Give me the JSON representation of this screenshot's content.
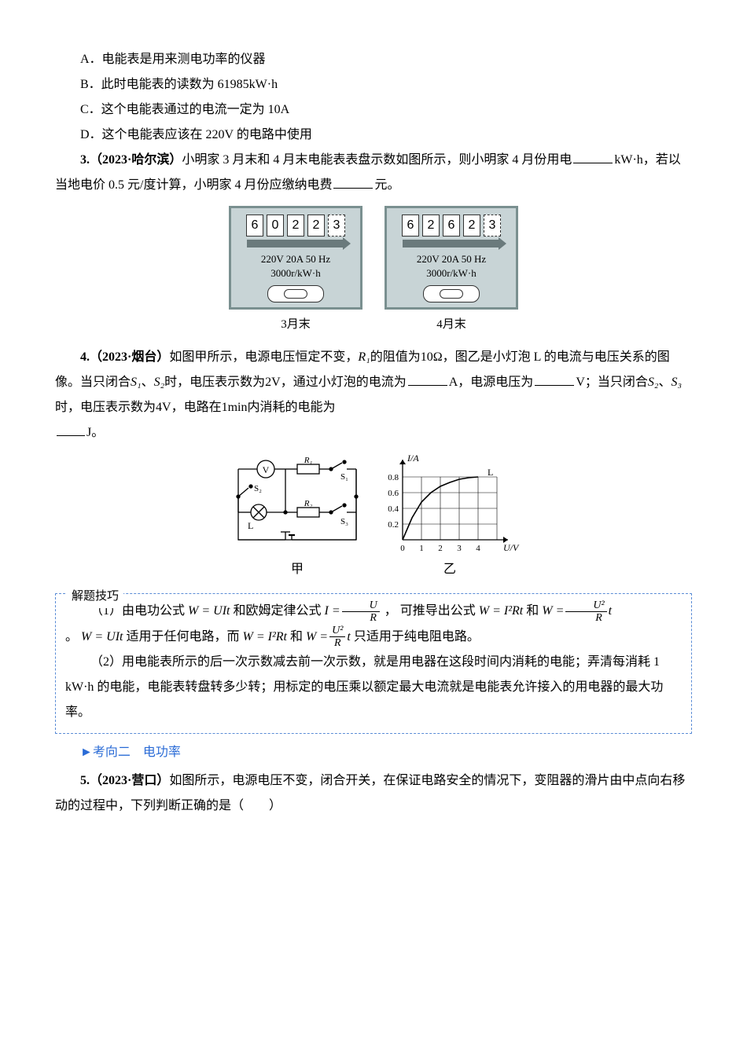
{
  "options": {
    "A": "A．电能表是用来测电功率的仪器",
    "B": "B．此时电能表的读数为 61985kW·h",
    "C": "C．这个电能表通过的电流一定为 10A",
    "D": "D．这个电能表应该在 220V 的电路中使用"
  },
  "q3": {
    "stem_pre": "3.（2023·哈尔滨）",
    "text1": "小明家 3 月末和 4 月末电能表表盘示数如图所示，则小明家 4 月份用电",
    "unit1": "kW·h，若以当地电价 0.5 元/度计算，小明家 4 月份应缴纳电费",
    "unit2": "元。",
    "meters": [
      {
        "digits": [
          "6",
          "0",
          "2",
          "2",
          "3"
        ],
        "spec1": "220V 20A 50 Hz",
        "spec2": "3000r/kW·h",
        "label": "3月末"
      },
      {
        "digits": [
          "6",
          "2",
          "6",
          "2",
          "3"
        ],
        "spec1": "220V 20A 50 Hz",
        "spec2": "3000r/kW·h",
        "label": "4月末"
      }
    ]
  },
  "q4": {
    "stem_pre": "4.（2023·烟台）",
    "text1": "如图甲所示，电源电压恒定不变，",
    "R1": "R₁",
    "t1b": "的阻值为",
    "val10": "10Ω",
    "t1c": "，图乙是小灯泡 L 的电流与电压关系的图像。当只闭合",
    "S1": "S₁",
    "S2": "S₂",
    "t2": "时，电压表示数为",
    "val2v": "2V",
    "t3": "，通过小灯泡的电流为",
    "t4": "A，电源电压为",
    "t5": "V；当只闭合",
    "S2b": "S₂",
    "S3": "S₃",
    "t6": "时，电压表示数为",
    "val4v": "4V",
    "t7": "，电路在",
    "val1min": "1min",
    "t8": "内消耗的电能为",
    "t9": "J。",
    "circuit_label_left": "甲",
    "circuit_label_right": "乙",
    "graph": {
      "ylabel": "I/A",
      "xlabel": "U/V",
      "xticks": [
        "0",
        "1",
        "2",
        "3",
        "4"
      ],
      "yticks": [
        "0.2",
        "0.4",
        "0.6",
        "0.8"
      ],
      "series_label": "L",
      "points": [
        [
          0,
          0
        ],
        [
          0.5,
          0.28
        ],
        [
          1,
          0.48
        ],
        [
          1.5,
          0.6
        ],
        [
          2,
          0.68
        ],
        [
          2.5,
          0.73
        ],
        [
          3,
          0.77
        ],
        [
          3.5,
          0.79
        ],
        [
          4,
          0.8
        ]
      ],
      "line_color": "#000000",
      "grid_color": "#000000",
      "xlim": [
        0,
        5
      ],
      "ylim": [
        0,
        0.9
      ]
    }
  },
  "tips": {
    "title": "解题技巧",
    "p1a": "（1）由电功公式",
    "f_wuit": "W = UIt",
    "p1b": " 和欧姆定律公式 ",
    "f_iur_lhs": "I =",
    "f_iur_num": "U",
    "f_iur_den": "R",
    "p1c": " ， 可推导出公式",
    "f_wirt": "W = I²Rt",
    "p1d": " 和 ",
    "f_wur_lhs": "W =",
    "f_wur_num": "U²",
    "f_wur_den": "R",
    "f_wur_t": "t",
    "p2a": "。",
    "p2b": "适用于任何电路，而",
    "p2c": "和",
    "p2d": " 只适用于纯电阻电路。",
    "p3": "（2）用电能表所示的后一次示数减去前一次示数，就是用电器在这段时间内消耗的电能；弄清每消耗 1 kW·h 的电能，电能表转盘转多少转；用标定的电压乘以额定最大电流就是电能表允许接入的用电器的最大功率。"
  },
  "section2": {
    "arrow": "►",
    "label": "考向二　电功率"
  },
  "q5": {
    "stem_pre": "5.（2023·营口）",
    "text": "如图所示，电源电压不变，闭合开关，在保证电路安全的情况下，变阻器的滑片由中点向右移动的过程中，下列判断正确的是（　　）"
  }
}
